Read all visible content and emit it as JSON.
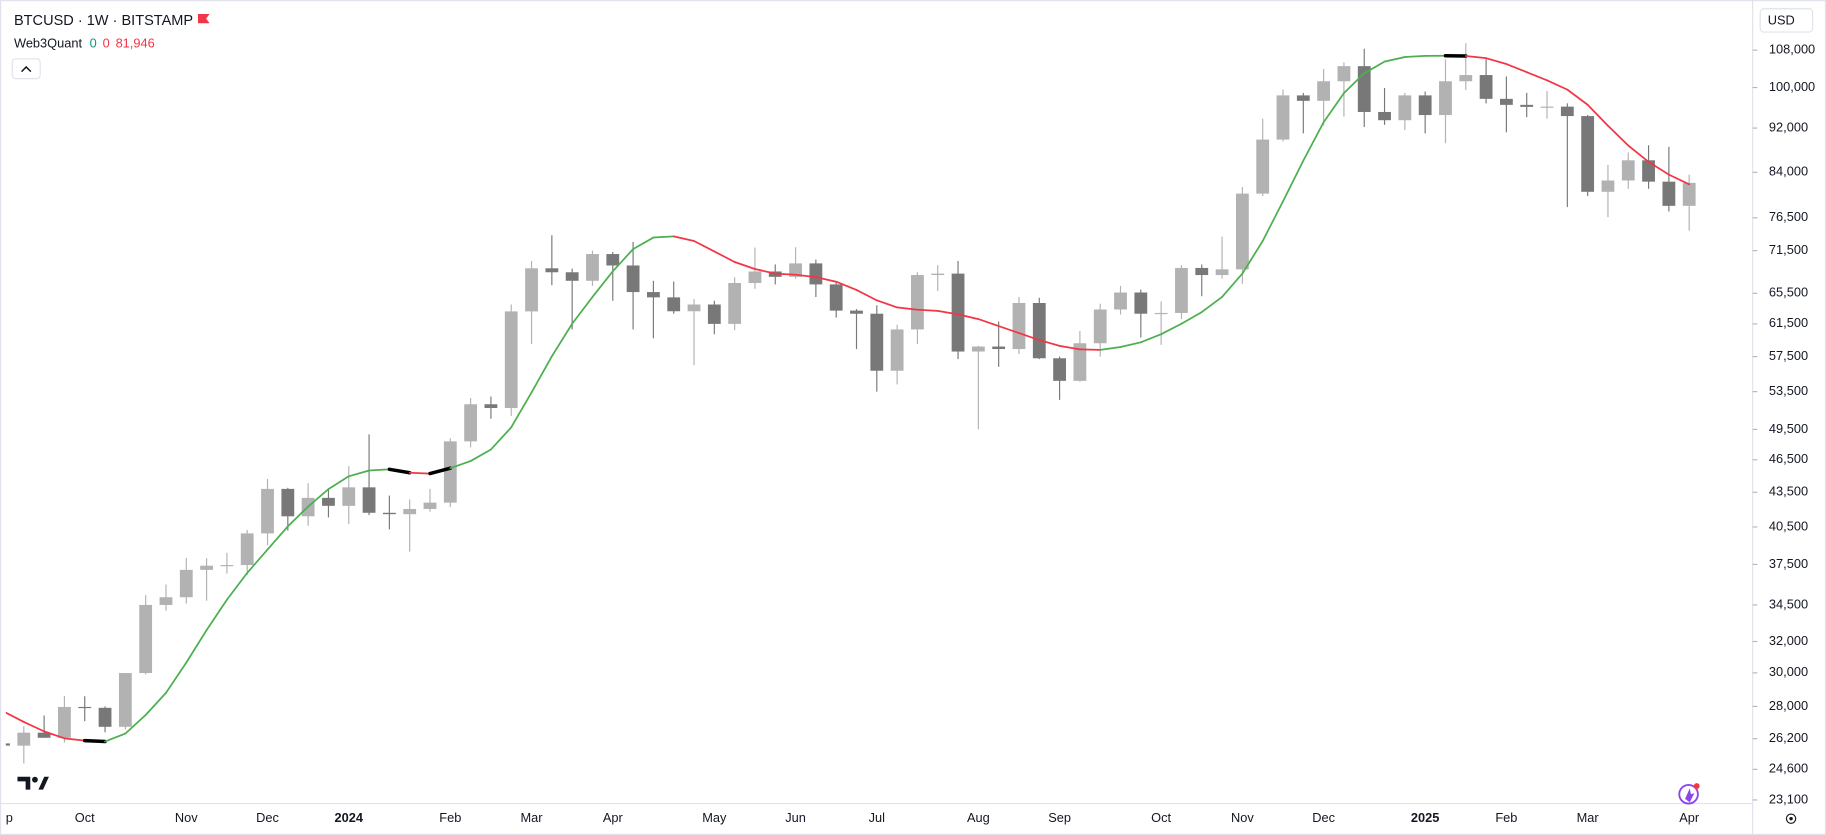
{
  "chart_data": {
    "type": "candlestick",
    "title": "BTCUSD · 1W · BITSTAMP",
    "currency_button": "USD",
    "log": true,
    "up_color": "#b2b2b2",
    "down_color": "#787878",
    "ylim": [
      22930,
      118300
    ],
    "yticks": [
      {
        "value": 108000,
        "label": "108,000"
      },
      {
        "value": 100000,
        "label": "100,000"
      },
      {
        "value": 92000,
        "label": "92,000"
      },
      {
        "value": 84000,
        "label": "84,000"
      },
      {
        "value": 76500,
        "label": "76,500"
      },
      {
        "value": 71500,
        "label": "71,500"
      },
      {
        "value": 65500,
        "label": "65,500"
      },
      {
        "value": 61500,
        "label": "61,500"
      },
      {
        "value": 57500,
        "label": "57,500"
      },
      {
        "value": 53500,
        "label": "53,500"
      },
      {
        "value": 49500,
        "label": "49,500"
      },
      {
        "value": 46500,
        "label": "46,500"
      },
      {
        "value": 43500,
        "label": "43,500"
      },
      {
        "value": 40500,
        "label": "40,500"
      },
      {
        "value": 37500,
        "label": "37,500"
      },
      {
        "value": 34500,
        "label": "34,500"
      },
      {
        "value": 32000,
        "label": "32,000"
      },
      {
        "value": 30000,
        "label": "30,000"
      },
      {
        "value": 28000,
        "label": "28,000"
      },
      {
        "value": 26200,
        "label": "26,200"
      },
      {
        "value": 24600,
        "label": "24,600"
      },
      {
        "value": 23100,
        "label": "23,100"
      }
    ],
    "categories": [
      "p",
      null,
      null,
      null,
      "Oct",
      null,
      null,
      null,
      null,
      "Nov",
      null,
      null,
      null,
      "Dec",
      null,
      null,
      null,
      "2024",
      null,
      null,
      null,
      null,
      "Feb",
      null,
      null,
      null,
      "Mar",
      null,
      null,
      null,
      "Apr",
      null,
      null,
      null,
      null,
      "May",
      null,
      null,
      null,
      "Jun",
      null,
      null,
      null,
      "Jul",
      null,
      null,
      null,
      null,
      "Aug",
      null,
      null,
      null,
      "Sep",
      null,
      null,
      null,
      null,
      "Oct",
      null,
      null,
      null,
      "Nov",
      null,
      null,
      null,
      "Dec",
      null,
      null,
      null,
      null,
      "2025",
      null,
      null,
      null,
      "Feb",
      null,
      null,
      null,
      "Mar",
      null,
      null,
      null,
      null,
      "Apr"
    ],
    "open": [
      25950,
      25830,
      26530,
      26250,
      27970,
      27920,
      26850,
      29990,
      34500,
      35050,
      37080,
      37400,
      37450,
      39970,
      43800,
      41400,
      43000,
      42300,
      43940,
      41700,
      41580,
      42030,
      42580,
      48300,
      52130,
      51730,
      63100,
      68950,
      68390,
      67200,
      71000,
      69350,
      65660,
      64950,
      63120,
      64000,
      61500,
      66900,
      68500,
      67750,
      69650,
      66700,
      63200,
      62800,
      55850,
      60800,
      68000,
      68200,
      58100,
      58700,
      58400,
      64200,
      57300,
      54700,
      59100,
      63350,
      65600,
      62800,
      62900,
      69000,
      68000,
      68800,
      80400,
      89850,
      98400,
      97300,
      101300,
      104500,
      95100,
      93500,
      98400,
      94500,
      101300,
      102600,
      97700,
      96500,
      96100,
      96150,
      94300,
      80700,
      82600,
      86100,
      82400,
      78400
    ],
    "high": [
      26050,
      26890,
      27480,
      28600,
      28590,
      28000,
      30000,
      35200,
      35980,
      38000,
      37980,
      38400,
      40250,
      44700,
      43900,
      44300,
      43800,
      45900,
      49000,
      43200,
      42850,
      43800,
      48600,
      52800,
      52960,
      64000,
      70000,
      73800,
      68900,
      71500,
      71300,
      72800,
      67200,
      67100,
      64700,
      64500,
      67700,
      71950,
      69500,
      72000,
      70200,
      67000,
      63400,
      63900,
      61400,
      68400,
      69400,
      70000,
      58800,
      61800,
      65000,
      64900,
      57500,
      60600,
      64100,
      66500,
      66000,
      64400,
      69400,
      69500,
      73600,
      81500,
      93800,
      99600,
      98900,
      103900,
      105300,
      108300,
      99900,
      98900,
      99200,
      106000,
      109500,
      106000,
      102300,
      98900,
      99300,
      96800,
      94500,
      85300,
      87500,
      88800,
      88500,
      83600
    ],
    "low": [
      25800,
      24900,
      26380,
      26000,
      27160,
      26550,
      26700,
      29900,
      34100,
      34600,
      34800,
      36800,
      36700,
      39000,
      40200,
      40600,
      41300,
      40750,
      41500,
      40300,
      38500,
      41800,
      42200,
      47700,
      50600,
      50900,
      59000,
      66600,
      60800,
      66500,
      64500,
      60800,
      59700,
      62800,
      56500,
      60200,
      60700,
      66100,
      66700,
      67500,
      65000,
      62300,
      58400,
      53500,
      54300,
      59000,
      65800,
      57200,
      49500,
      56300,
      57800,
      57200,
      52600,
      54600,
      57500,
      62700,
      59800,
      58900,
      62100,
      65100,
      67500,
      66800,
      80000,
      89500,
      91000,
      92500,
      94200,
      92200,
      92600,
      91600,
      91000,
      89200,
      99500,
      96800,
      91200,
      94100,
      93800,
      78200,
      80000,
      76600,
      81200,
      81200,
      77500,
      74500
    ],
    "close": [
      25830,
      26530,
      26250,
      27970,
      27920,
      26850,
      29990,
      34500,
      35050,
      37080,
      37400,
      37450,
      39970,
      43800,
      41400,
      43000,
      42300,
      43940,
      41700,
      41580,
      42030,
      42580,
      48300,
      52130,
      51730,
      63100,
      68950,
      68390,
      67200,
      71000,
      69350,
      65660,
      64950,
      63120,
      64000,
      61500,
      66900,
      68500,
      67750,
      69650,
      66700,
      63200,
      62800,
      55850,
      60800,
      68000,
      68200,
      58100,
      58700,
      58400,
      64200,
      57300,
      54700,
      59100,
      63350,
      65600,
      62800,
      62900,
      69000,
      68000,
      68800,
      80400,
      89850,
      98400,
      97300,
      101300,
      104500,
      95100,
      93500,
      98400,
      94500,
      101300,
      102600,
      97700,
      96500,
      96100,
      96150,
      94300,
      80700,
      82600,
      86100,
      82400,
      78400,
      82200
    ],
    "series": [
      {
        "name": "Web3Quant",
        "values": [
          27710,
          27120,
          26600,
          26220,
          26100,
          26050,
          26480,
          27510,
          28790,
          30640,
          32760,
          34870,
          36850,
          38660,
          40550,
          42240,
          43780,
          44950,
          45490,
          45600,
          45280,
          45200,
          45710,
          46380,
          47500,
          49710,
          53410,
          57530,
          61520,
          65000,
          68520,
          71720,
          73450,
          73630,
          72930,
          71380,
          69850,
          68850,
          68200,
          68040,
          67710,
          67070,
          65950,
          64550,
          63620,
          63320,
          63170,
          62710,
          62110,
          61230,
          60350,
          59490,
          58780,
          58360,
          58300,
          58640,
          59210,
          60210,
          61520,
          63010,
          65000,
          68200,
          72930,
          79120,
          86040,
          93110,
          98870,
          102970,
          105470,
          106480,
          106740,
          106760,
          106700,
          106230,
          104960,
          103220,
          101500,
          99570,
          96520,
          92450,
          88760,
          85830,
          83600,
          81946
        ],
        "colors": [
          "#f23645",
          "#f23645",
          "#f23645",
          "#f23645",
          "#000000",
          "#4caf50",
          "#4caf50",
          "#4caf50",
          "#4caf50",
          "#4caf50",
          "#4caf50",
          "#4caf50",
          "#4caf50",
          "#4caf50",
          "#4caf50",
          "#4caf50",
          "#4caf50",
          "#4caf50",
          "#4caf50",
          "#000000",
          "#f23645",
          "#000000",
          "#4caf50",
          "#4caf50",
          "#4caf50",
          "#4caf50",
          "#4caf50",
          "#4caf50",
          "#4caf50",
          "#4caf50",
          "#4caf50",
          "#4caf50",
          "#4caf50",
          "#f23645",
          "#f23645",
          "#f23645",
          "#f23645",
          "#f23645",
          "#f23645",
          "#f23645",
          "#f23645",
          "#f23645",
          "#f23645",
          "#f23645",
          "#f23645",
          "#f23645",
          "#f23645",
          "#f23645",
          "#f23645",
          "#f23645",
          "#f23645",
          "#f23645",
          "#f23645",
          "#f23645",
          "#4caf50",
          "#4caf50",
          "#4caf50",
          "#4caf50",
          "#4caf50",
          "#4caf50",
          "#4caf50",
          "#4caf50",
          "#4caf50",
          "#4caf50",
          "#4caf50",
          "#4caf50",
          "#4caf50",
          "#4caf50",
          "#4caf50",
          "#4caf50",
          "#4caf50",
          "#000000",
          "#f23645",
          "#f23645",
          "#f23645",
          "#f23645",
          "#f23645",
          "#f23645",
          "#f23645",
          "#f23645",
          "#f23645",
          "#f23645",
          "#f23645",
          "#f23645"
        ]
      }
    ],
    "indicator_readout": {
      "values": [
        0,
        0,
        81946
      ],
      "value_labels": [
        "0",
        "0",
        "81,946"
      ],
      "colors": [
        "#089981",
        "#f23645",
        "#f23645"
      ]
    }
  }
}
